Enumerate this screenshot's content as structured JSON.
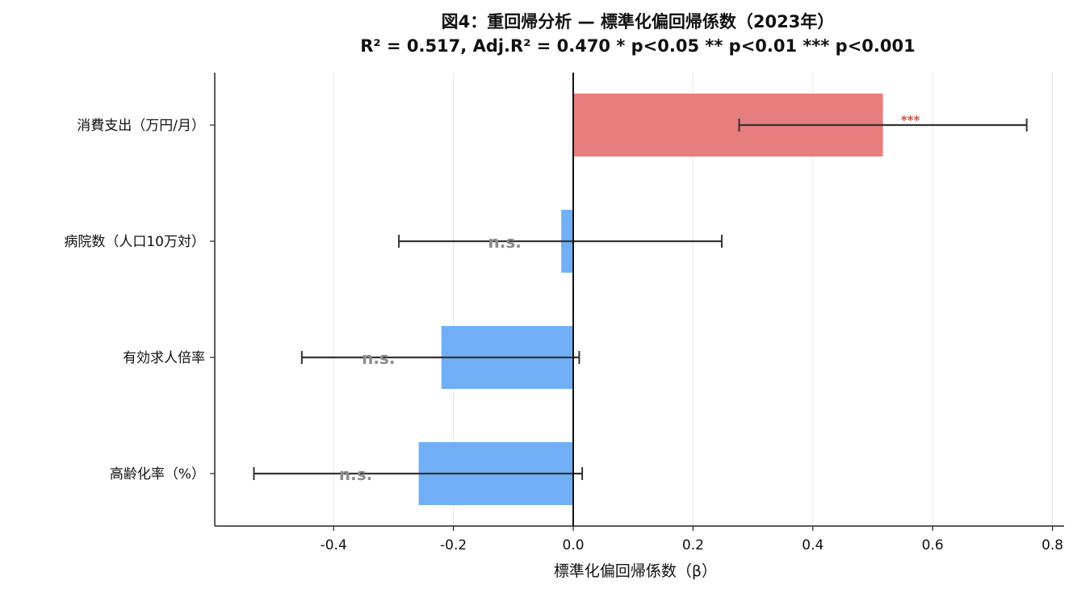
{
  "chart_data": {
    "type": "bar",
    "orientation": "horizontal",
    "title": "図4：重回帰分析 — 標準化偏回帰係数（2023年）",
    "subtitle": "R² = 0.517,  Adj.R² = 0.470      * p<0.05  ** p<0.01  *** p<0.001",
    "xlabel": "標準化偏回帰係数（β）",
    "ylabel": "",
    "xlim": [
      -0.6,
      0.82
    ],
    "xticks": [
      -0.4,
      -0.2,
      0.0,
      0.2,
      0.4,
      0.6,
      0.8
    ],
    "xtick_labels": [
      "-0.4",
      "-0.2",
      "0.0",
      "0.2",
      "0.4",
      "0.6",
      "0.8"
    ],
    "grid": "x",
    "categories": [
      "消費支出（万円/月）",
      "病院数（人口10万対）",
      "有効求人倍率",
      "高齢化率（%）"
    ],
    "values": [
      0.517,
      -0.02,
      -0.22,
      -0.258
    ],
    "ci_low": [
      0.277,
      -0.291,
      -0.453,
      -0.533
    ],
    "ci_high": [
      0.757,
      0.248,
      0.01,
      0.015
    ],
    "significance": [
      "***",
      "n.s.",
      "n.s.",
      "n.s."
    ],
    "colors": {
      "positive": "#e57373",
      "negative": "#64a8f5",
      "errorbar": "#333333",
      "significant_label": "#c0392b",
      "ns_label": "#8c8c8c"
    }
  }
}
